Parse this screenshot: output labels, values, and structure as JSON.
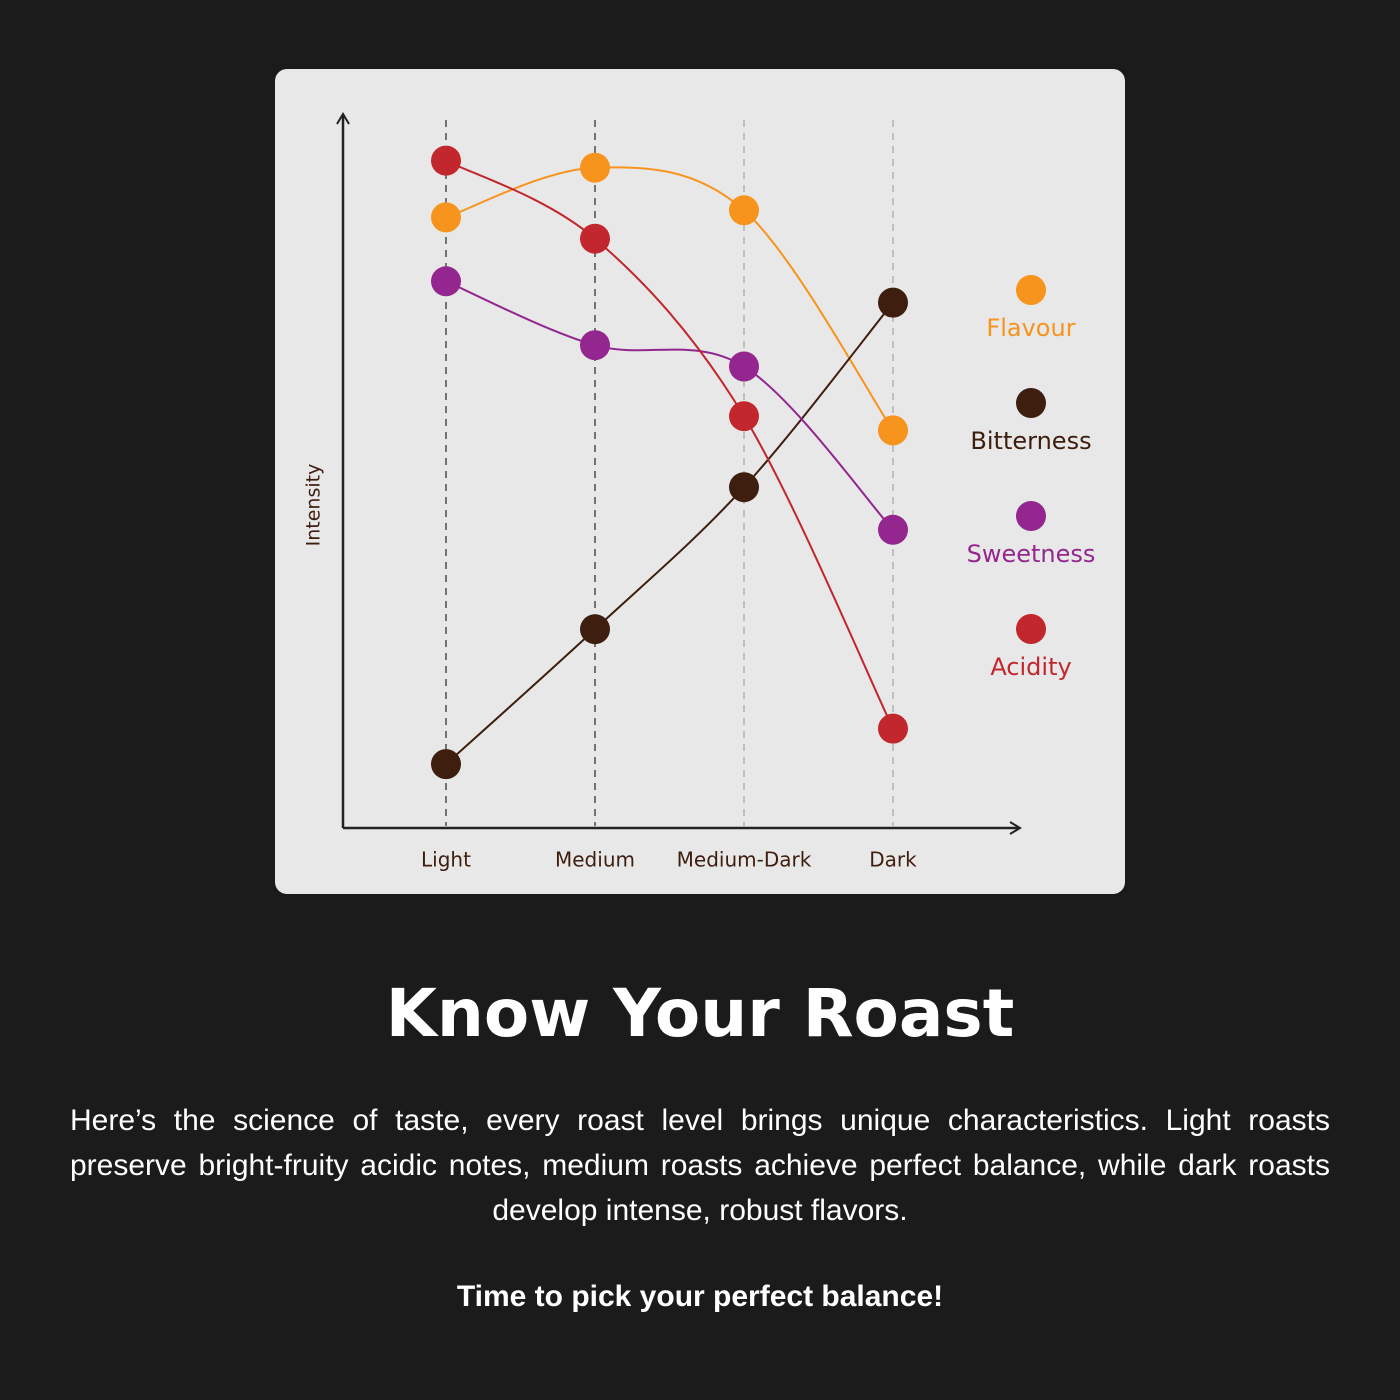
{
  "chart_data": {
    "type": "line",
    "y_label": "Intensity",
    "categories": [
      "Light",
      "Medium",
      "Medium-Dark",
      "Dark"
    ],
    "ylim": [
      0,
      100
    ],
    "grid": true,
    "legend": "right",
    "series": [
      {
        "name": "Flavour",
        "color": "#f7941d",
        "values": [
          86,
          93,
          87,
          56
        ]
      },
      {
        "name": "Bitterness",
        "color": "#3d1e0f",
        "values": [
          9,
          28,
          48,
          74
        ]
      },
      {
        "name": "Sweetness",
        "color": "#93278f",
        "values": [
          77,
          68,
          65,
          42
        ]
      },
      {
        "name": "Acidity",
        "color": "#c1272d",
        "values": [
          94,
          83,
          58,
          14
        ]
      }
    ]
  },
  "heading": "Know Your Roast",
  "body": "Here’s the science of taste, every roast level brings unique characteristics. Light roasts preserve bright-fruity acidic notes, medium roasts achieve perfect balance, while dark roasts develop intense, robust flavors.",
  "tagline": "Time to pick your perfect balance!"
}
